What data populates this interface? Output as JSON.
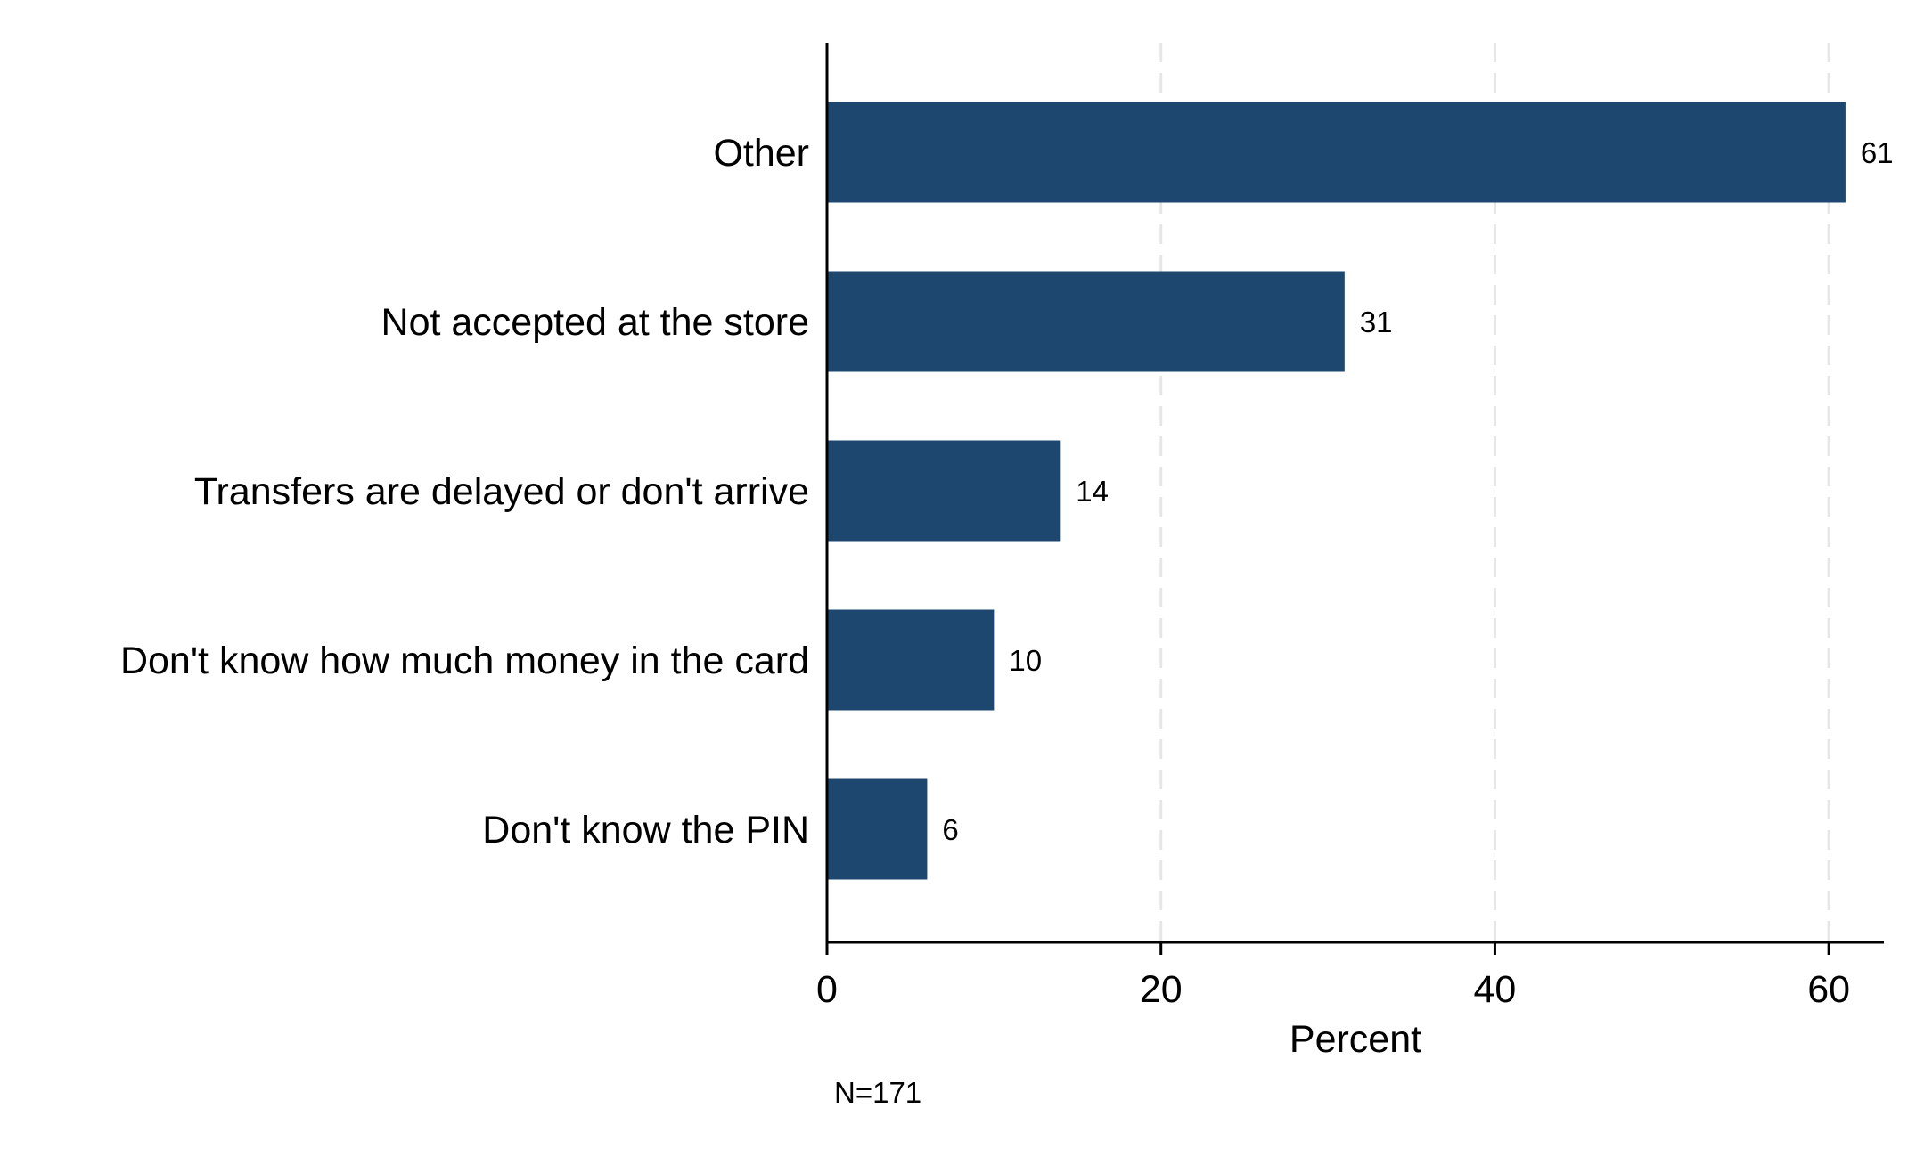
{
  "chart_data": {
    "type": "bar",
    "orientation": "horizontal",
    "categories": [
      "Other",
      "Not accepted at the store",
      "Transfers are delayed or don't arrive",
      "Don't know how much money in the card",
      "Don't know the PIN"
    ],
    "values": [
      61,
      31,
      14,
      10,
      6
    ],
    "value_labels": [
      "61",
      "31",
      "14",
      "10",
      "6"
    ],
    "xlabel": "Percent",
    "ylabel": "",
    "xlim": [
      0,
      63.3
    ],
    "xticks": [
      0,
      20,
      40,
      60
    ],
    "xtick_labels": [
      "0",
      "20",
      "40",
      "60"
    ],
    "grid": "vertical dashed at ticks",
    "legend": "none",
    "note": "N=171",
    "colors": {
      "bar": "#1d476f",
      "grid": "#e6e6e6",
      "axis": "#000000"
    }
  }
}
